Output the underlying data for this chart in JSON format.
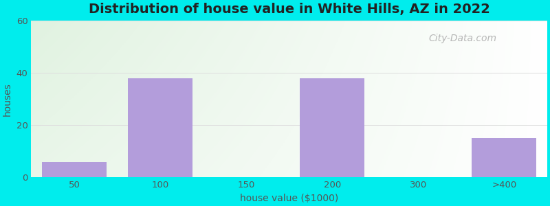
{
  "title": "Distribution of house value in White Hills, AZ in 2022",
  "xlabel": "house value ($1000)",
  "ylabel": "houses",
  "categories": [
    "50",
    "100",
    "150",
    "200",
    "300",
    ">400"
  ],
  "values": [
    6,
    38,
    0,
    38,
    0,
    15
  ],
  "bar_color": "#b39ddb",
  "bar_width": 0.75,
  "ylim": [
    0,
    60
  ],
  "yticks": [
    0,
    20,
    40,
    60
  ],
  "bg_color": "#00eded",
  "title_fontsize": 14,
  "label_fontsize": 10,
  "tick_fontsize": 9.5,
  "grid_color": "#dddddd",
  "watermark_text": "City-Data.com",
  "watermark_color": "#aaaaaa",
  "text_color": "#555555"
}
